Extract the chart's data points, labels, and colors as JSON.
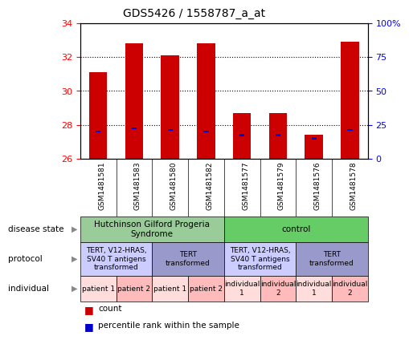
{
  "title": "GDS5426 / 1558787_a_at",
  "samples": [
    "GSM1481581",
    "GSM1481583",
    "GSM1481580",
    "GSM1481582",
    "GSM1481577",
    "GSM1481579",
    "GSM1481576",
    "GSM1481578"
  ],
  "count_values": [
    31.1,
    32.8,
    32.1,
    32.8,
    28.7,
    28.7,
    27.4,
    32.9
  ],
  "percentile_values": [
    27.6,
    27.8,
    27.7,
    27.6,
    27.4,
    27.4,
    27.2,
    27.7
  ],
  "ylim_left": [
    26,
    34
  ],
  "ylim_right": [
    0,
    100
  ],
  "yticks_left": [
    26,
    28,
    30,
    32,
    34
  ],
  "yticks_right": [
    0,
    25,
    50,
    75,
    100
  ],
  "bar_color": "#cc0000",
  "percentile_color": "#0000cc",
  "bar_width": 0.5,
  "xticklabel_bg": "#d0d0d0",
  "disease_state_groups": [
    {
      "label": "Hutchinson Gilford Progeria\nSyndrome",
      "start": 0,
      "end": 4,
      "color": "#99cc99"
    },
    {
      "label": "control",
      "start": 4,
      "end": 8,
      "color": "#66cc66"
    }
  ],
  "protocol_groups": [
    {
      "label": "TERT, V12-HRAS,\nSV40 T antigens\ntransformed",
      "start": 0,
      "end": 2,
      "color": "#ccccff"
    },
    {
      "label": "TERT\ntransformed",
      "start": 2,
      "end": 4,
      "color": "#9999cc"
    },
    {
      "label": "TERT, V12-HRAS,\nSV40 T antigens\ntransformed",
      "start": 4,
      "end": 6,
      "color": "#ccccff"
    },
    {
      "label": "TERT\ntransformed",
      "start": 6,
      "end": 8,
      "color": "#9999cc"
    }
  ],
  "individual_groups": [
    {
      "label": "patient 1",
      "start": 0,
      "end": 1,
      "color": "#ffdddd"
    },
    {
      "label": "patient 2",
      "start": 1,
      "end": 2,
      "color": "#ffbbbb"
    },
    {
      "label": "patient 1",
      "start": 2,
      "end": 3,
      "color": "#ffdddd"
    },
    {
      "label": "patient 2",
      "start": 3,
      "end": 4,
      "color": "#ffbbbb"
    },
    {
      "label": "individual\n1",
      "start": 4,
      "end": 5,
      "color": "#ffdddd"
    },
    {
      "label": "individual\n2",
      "start": 5,
      "end": 6,
      "color": "#ffbbbb"
    },
    {
      "label": "individual\n1",
      "start": 6,
      "end": 7,
      "color": "#ffdddd"
    },
    {
      "label": "individual\n2",
      "start": 7,
      "end": 8,
      "color": "#ffbbbb"
    }
  ],
  "row_labels": [
    "disease state",
    "protocol",
    "individual"
  ],
  "legend_items": [
    {
      "label": "count",
      "color": "#cc0000"
    },
    {
      "label": "percentile rank within the sample",
      "color": "#0000cc"
    }
  ]
}
